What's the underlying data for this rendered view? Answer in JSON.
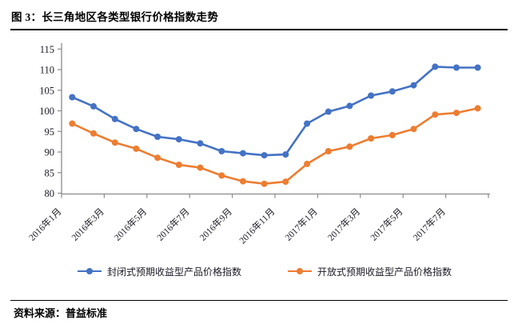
{
  "header": {
    "title": "图 3：长三角地区各类型银行价格指数走势"
  },
  "footer": {
    "source": "资料来源：普益标准"
  },
  "chart_data": {
    "type": "line",
    "title": "长三角地区各类型银行价格指数走势",
    "x": [
      "2016年1月",
      "2016年2月",
      "2016年3月",
      "2016年4月",
      "2016年5月",
      "2016年6月",
      "2016年7月",
      "2016年8月",
      "2016年9月",
      "2016年10月",
      "2016年11月",
      "2016年12月",
      "2017年1月",
      "2017年2月",
      "2017年3月",
      "2017年4月",
      "2017年5月",
      "2017年6月",
      "2017年7月",
      "2017年8月"
    ],
    "x_tick_labels": [
      "2016年1月",
      "2016年3月",
      "2016年5月",
      "2016年7月",
      "2016年9月",
      "2016年11月",
      "2017年1月",
      "2017年3月",
      "2017年5月",
      "2017年7月"
    ],
    "series": [
      {
        "name": "封闭式预期收益型产品价格指数",
        "color": "#4472C4",
        "values": [
          103.3,
          101.1,
          98.0,
          95.6,
          93.7,
          93.1,
          92.1,
          90.2,
          89.7,
          89.2,
          89.4,
          96.9,
          99.8,
          101.2,
          103.7,
          104.7,
          106.2,
          110.7,
          110.5,
          110.5
        ]
      },
      {
        "name": "开放式预期收益型产品价格指数",
        "color": "#ED7D31",
        "values": [
          96.9,
          94.5,
          92.3,
          90.8,
          88.6,
          86.9,
          86.2,
          84.3,
          82.9,
          82.3,
          82.8,
          87.1,
          90.2,
          91.3,
          93.3,
          94.1,
          95.6,
          99.1,
          99.5,
          100.6
        ]
      }
    ],
    "ylim": [
      80,
      115
    ],
    "ytick_step": 5,
    "yticks": [
      80,
      85,
      90,
      95,
      100,
      105,
      110,
      115
    ],
    "grid": false,
    "legend_position": "bottom",
    "axis_color": "#8C8C8C",
    "label_color": "#1a1a24"
  }
}
